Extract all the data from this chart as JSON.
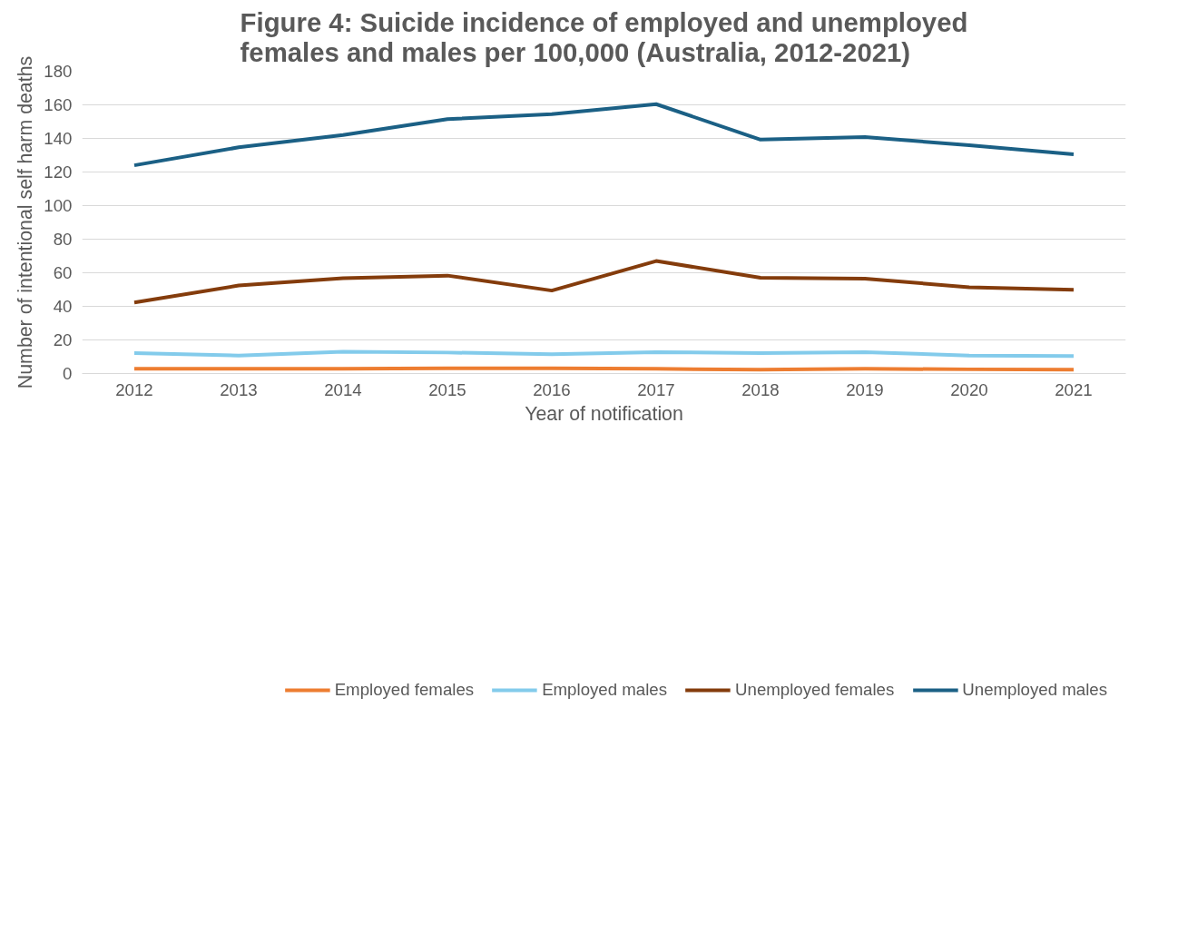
{
  "chart_data": {
    "type": "line",
    "title": "Figure 4: Suicide incidence of employed and unemployed females and males per 100,000 (Australia, 2012-2021)",
    "xlabel": "Year of notification",
    "ylabel": "Number of intentional self harm deaths",
    "categories": [
      "2012",
      "2013",
      "2014",
      "2015",
      "2016",
      "2017",
      "2018",
      "2019",
      "2020",
      "2021"
    ],
    "ylim": [
      0,
      180
    ],
    "yticks": [
      0,
      20,
      40,
      60,
      80,
      100,
      120,
      140,
      160,
      180
    ],
    "grid": "y",
    "legend": "bottom",
    "marker": "none",
    "line_style": "solid",
    "series": [
      {
        "name": "Employed females",
        "color": "#ed7d31",
        "values": [
          2.8,
          2.8,
          2.8,
          3.1,
          3.1,
          2.8,
          2.3,
          2.8,
          2.5,
          2.3
        ]
      },
      {
        "name": "Employed males",
        "color": "#83cbeb",
        "values": [
          12.2,
          10.7,
          13,
          12.5,
          11.5,
          12.7,
          12.2,
          12.7,
          10.7,
          10.4
        ]
      },
      {
        "name": "Unemployed females",
        "color": "#843c0c",
        "values": [
          42.3,
          52.4,
          56.8,
          58.3,
          49.4,
          67,
          57,
          56.5,
          51.4,
          49.9
        ]
      },
      {
        "name": "Unemployed males",
        "color": "#1b6085",
        "values": [
          124,
          134.7,
          142,
          151.5,
          154.5,
          160.4,
          139.3,
          140.8,
          136,
          130.6
        ]
      }
    ]
  }
}
